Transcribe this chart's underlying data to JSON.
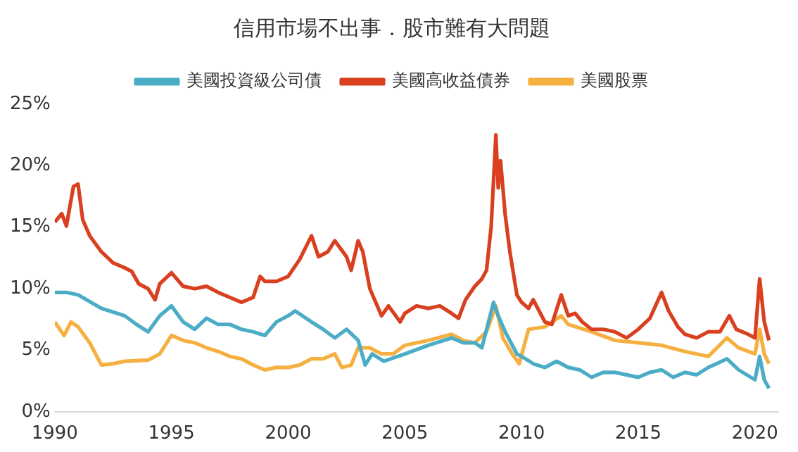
{
  "chart_data": {
    "type": "line",
    "title": "信用市場不出事．股市難有大問題",
    "legend": "top",
    "grid": false,
    "marker": "none",
    "line_style": "solid",
    "xlim": [
      1990,
      2021
    ],
    "xticks": [
      1990,
      1995,
      2000,
      2005,
      2010,
      2015,
      2020
    ],
    "ylim": [
      0,
      25
    ],
    "yticks": [
      {
        "value": 0,
        "label": "0%"
      },
      {
        "value": 5,
        "label": "5%"
      },
      {
        "value": 10,
        "label": "10%"
      },
      {
        "value": 15,
        "label": "15%"
      },
      {
        "value": 20,
        "label": "20%"
      },
      {
        "value": 25,
        "label": "25%"
      }
    ],
    "series": [
      {
        "name": "美國投資級公司債",
        "color": "#4bacc6",
        "x": [
          1990,
          1990.5,
          1991,
          1992,
          1993,
          1993.5,
          1994,
          1994.5,
          1995,
          1995.5,
          1996,
          1996.5,
          1997,
          1997.5,
          1998,
          1998.5,
          1999,
          1999.5,
          2000,
          2000.3,
          2001,
          2001.5,
          2002,
          2002.5,
          2003,
          2003.3,
          2003.6,
          2004.1,
          2005,
          2006,
          2007,
          2007.5,
          2008,
          2008.3,
          2008.8,
          2009,
          2009.3,
          2009.8,
          2010,
          2010.5,
          2011,
          2011.5,
          2012,
          2012.5,
          2013,
          2013.5,
          2014,
          2014.5,
          2015,
          2015.5,
          2016,
          2016.5,
          2017,
          2017.5,
          2018,
          2018.8,
          2019.3,
          2020,
          2020.2,
          2020.4,
          2020.6
        ],
        "values": [
          9.7,
          9.7,
          9.5,
          8.4,
          7.8,
          7.1,
          6.5,
          7.8,
          8.6,
          7.3,
          6.7,
          7.6,
          7.1,
          7.1,
          6.7,
          6.5,
          6.2,
          7.3,
          7.8,
          8.2,
          7.3,
          6.7,
          6.0,
          6.7,
          5.8,
          3.8,
          4.7,
          4.1,
          4.7,
          5.4,
          6.0,
          5.6,
          5.6,
          5.2,
          8.9,
          7.8,
          6.5,
          4.7,
          4.5,
          3.9,
          3.6,
          4.1,
          3.6,
          3.4,
          2.8,
          3.2,
          3.2,
          3.0,
          2.8,
          3.2,
          3.4,
          2.8,
          3.2,
          3.0,
          3.6,
          4.3,
          3.4,
          2.6,
          4.5,
          2.6,
          1.9
        ]
      },
      {
        "name": "美國高收益債券",
        "color": "#d8401f",
        "x": [
          1990,
          1990.3,
          1990.5,
          1990.8,
          1991,
          1991.2,
          1991.5,
          1992,
          1992.5,
          1993,
          1993.3,
          1993.6,
          1994,
          1994.3,
          1994.5,
          1995,
          1995.5,
          1996,
          1996.5,
          1997,
          1997.5,
          1998,
          1998.5,
          1998.8,
          1999,
          1999.5,
          2000,
          2000.5,
          2001,
          2001.3,
          2001.7,
          2002,
          2002.5,
          2002.7,
          2003,
          2003.2,
          2003.5,
          2004,
          2004.3,
          2004.8,
          2005,
          2005.5,
          2006,
          2006.5,
          2007,
          2007.3,
          2007.6,
          2008,
          2008.3,
          2008.5,
          2008.7,
          2008.9,
          2009,
          2009.1,
          2009.3,
          2009.5,
          2009.8,
          2010,
          2010.3,
          2010.5,
          2011,
          2011.3,
          2011.7,
          2012,
          2012.3,
          2012.6,
          2013,
          2013.5,
          2014,
          2014.5,
          2015,
          2015.5,
          2016,
          2016.3,
          2016.7,
          2017,
          2017.5,
          2018,
          2018.5,
          2018.9,
          2019.2,
          2019.7,
          2020,
          2020.2,
          2020.4,
          2020.6
        ],
        "values": [
          15.4,
          16.1,
          15.1,
          18.3,
          18.5,
          15.6,
          14.3,
          13.0,
          12.1,
          11.7,
          11.4,
          10.4,
          10.0,
          9.1,
          10.4,
          11.3,
          10.2,
          10.0,
          10.2,
          9.7,
          9.3,
          8.9,
          9.3,
          11.0,
          10.6,
          10.6,
          11.0,
          12.4,
          14.3,
          12.6,
          13.0,
          13.9,
          12.6,
          11.5,
          13.9,
          13.0,
          10.0,
          7.8,
          8.6,
          7.3,
          8.0,
          8.6,
          8.4,
          8.6,
          8.0,
          7.6,
          9.1,
          10.2,
          10.8,
          11.5,
          15.1,
          22.5,
          18.2,
          20.4,
          16.0,
          13.0,
          9.5,
          8.9,
          8.4,
          9.1,
          7.3,
          7.1,
          9.5,
          7.8,
          8.0,
          7.3,
          6.7,
          6.7,
          6.5,
          6.0,
          6.7,
          7.6,
          9.7,
          8.2,
          6.9,
          6.3,
          6.0,
          6.5,
          6.5,
          7.8,
          6.7,
          6.3,
          6.0,
          10.8,
          7.3,
          5.8
        ]
      },
      {
        "name": "美國股票",
        "color": "#f5b041",
        "x": [
          1990,
          1990.4,
          1990.7,
          1991,
          1991.5,
          1992,
          1992.5,
          1993,
          1994,
          1994.5,
          1995,
          1995.5,
          1996,
          1996.5,
          1997,
          1997.5,
          1998,
          1998.5,
          1999,
          1999.5,
          2000,
          2000.5,
          2001,
          2001.5,
          2002,
          2002.3,
          2002.7,
          2003,
          2003.5,
          2004,
          2004.5,
          2005,
          2006,
          2007,
          2007.5,
          2008,
          2008.5,
          2008.9,
          2009.2,
          2009.6,
          2009.9,
          2010.3,
          2011,
          2011.7,
          2012,
          2013,
          2014,
          2015,
          2016,
          2017,
          2018,
          2018.8,
          2019.3,
          2020,
          2020.2,
          2020.4,
          2020.6
        ],
        "values": [
          7.3,
          6.2,
          7.3,
          6.9,
          5.6,
          3.8,
          3.9,
          4.1,
          4.2,
          4.7,
          6.2,
          5.8,
          5.6,
          5.2,
          4.9,
          4.5,
          4.3,
          3.8,
          3.4,
          3.6,
          3.6,
          3.8,
          4.3,
          4.3,
          4.7,
          3.6,
          3.8,
          5.2,
          5.2,
          4.7,
          4.7,
          5.4,
          5.8,
          6.3,
          5.8,
          5.6,
          6.5,
          8.6,
          6.0,
          4.7,
          3.9,
          6.7,
          6.9,
          7.8,
          7.1,
          6.5,
          5.8,
          5.6,
          5.4,
          4.9,
          4.5,
          6.0,
          5.2,
          4.7,
          6.7,
          4.7,
          3.9
        ]
      }
    ]
  }
}
